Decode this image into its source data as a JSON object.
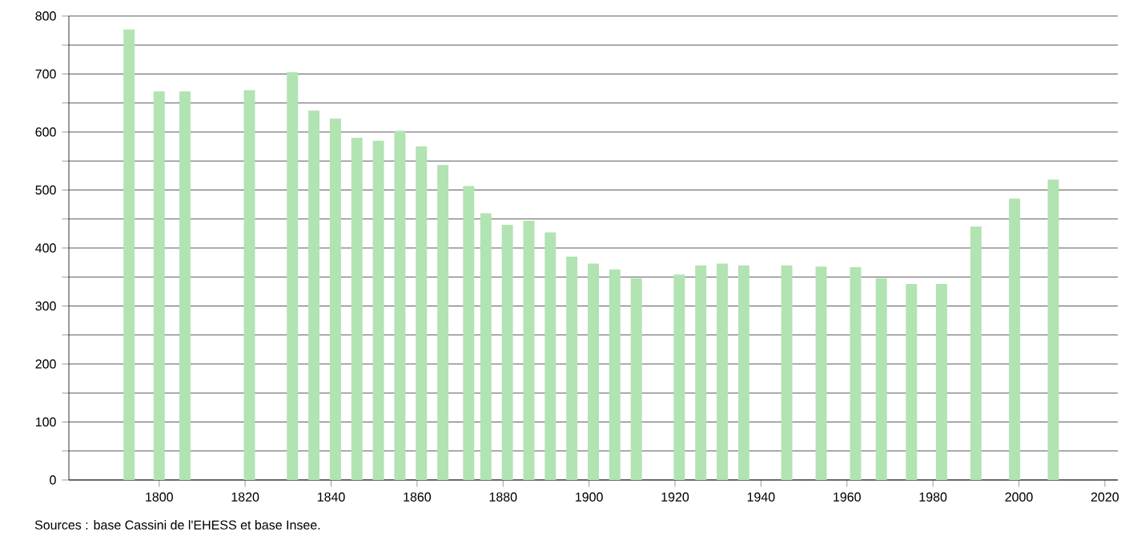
{
  "chart_data": {
    "type": "bar",
    "x": [
      1793,
      1800,
      1806,
      1821,
      1831,
      1836,
      1841,
      1846,
      1851,
      1856,
      1861,
      1866,
      1872,
      1876,
      1881,
      1886,
      1891,
      1896,
      1901,
      1906,
      1911,
      1921,
      1926,
      1931,
      1936,
      1946,
      1954,
      1962,
      1968,
      1975,
      1982,
      1990,
      1999,
      2008
    ],
    "values": [
      777,
      670,
      670,
      672,
      703,
      637,
      623,
      590,
      585,
      602,
      575,
      543,
      507,
      460,
      440,
      447,
      427,
      385,
      373,
      363,
      348,
      354,
      370,
      373,
      370,
      370,
      368,
      367,
      348,
      338,
      338,
      437,
      485,
      518
    ],
    "color": "#b2e3b2",
    "xlim": [
      1779,
      2023
    ],
    "xticks": [
      1800,
      1820,
      1840,
      1860,
      1880,
      1900,
      1920,
      1940,
      1960,
      1980,
      2000,
      2020
    ],
    "ylim": [
      0,
      800
    ],
    "yticks": [
      0,
      {
        "value": 50,
        "label": null
      },
      100,
      {
        "value": 150,
        "label": null
      },
      200,
      {
        "value": 250,
        "label": null
      },
      300,
      {
        "value": 350,
        "label": null
      },
      400,
      {
        "value": 450,
        "label": null
      },
      500,
      {
        "value": 550,
        "label": null
      },
      600,
      {
        "value": 650,
        "label": null
      },
      700,
      {
        "value": 750,
        "label": null
      },
      800
    ],
    "grid": "y",
    "annotations": [
      "Sources : base Cassini de l'EHESS et base Insee."
    ]
  }
}
